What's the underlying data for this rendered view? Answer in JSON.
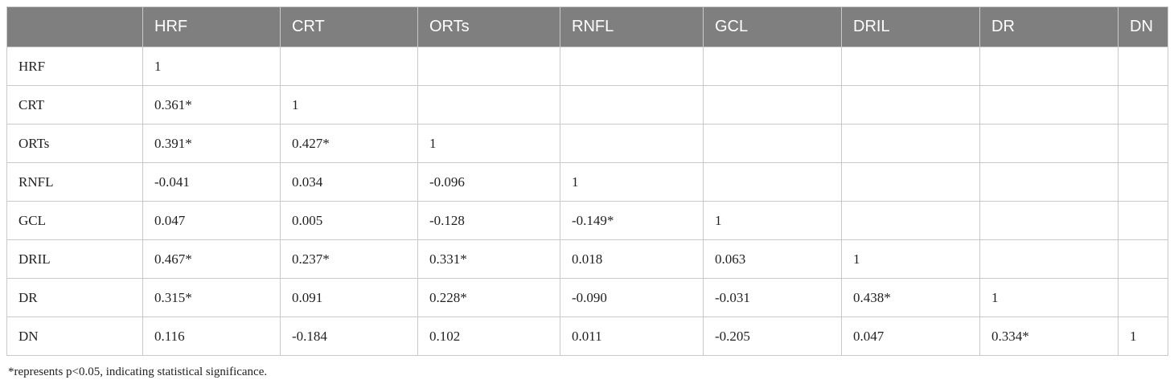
{
  "table": {
    "columns": [
      "HRF",
      "CRT",
      "ORTs",
      "RNFL",
      "GCL",
      "DRIL",
      "DR",
      "DN"
    ],
    "rows": [
      {
        "label": "HRF",
        "cells": [
          "1"
        ]
      },
      {
        "label": "CRT",
        "cells": [
          "0.361*",
          "1"
        ]
      },
      {
        "label": "ORTs",
        "cells": [
          "0.391*",
          "0.427*",
          "1"
        ]
      },
      {
        "label": "RNFL",
        "cells": [
          "-0.041",
          "0.034",
          "-0.096",
          "1"
        ]
      },
      {
        "label": "GCL",
        "cells": [
          "0.047",
          "0.005",
          "-0.128",
          "-0.149*",
          "1"
        ]
      },
      {
        "label": "DRIL",
        "cells": [
          "0.467*",
          "0.237*",
          "0.331*",
          "0.018",
          "0.063",
          "1"
        ]
      },
      {
        "label": "DR",
        "cells": [
          "0.315*",
          "0.091",
          "0.228*",
          "-0.090",
          "-0.031",
          "0.438*",
          "1"
        ]
      },
      {
        "label": "DN",
        "cells": [
          "0.116",
          "-0.184",
          "0.102",
          "0.011",
          "-0.205",
          "0.047",
          "0.334*",
          "1"
        ]
      }
    ],
    "footnote": "*represents p<0.05, indicating statistical significance."
  }
}
